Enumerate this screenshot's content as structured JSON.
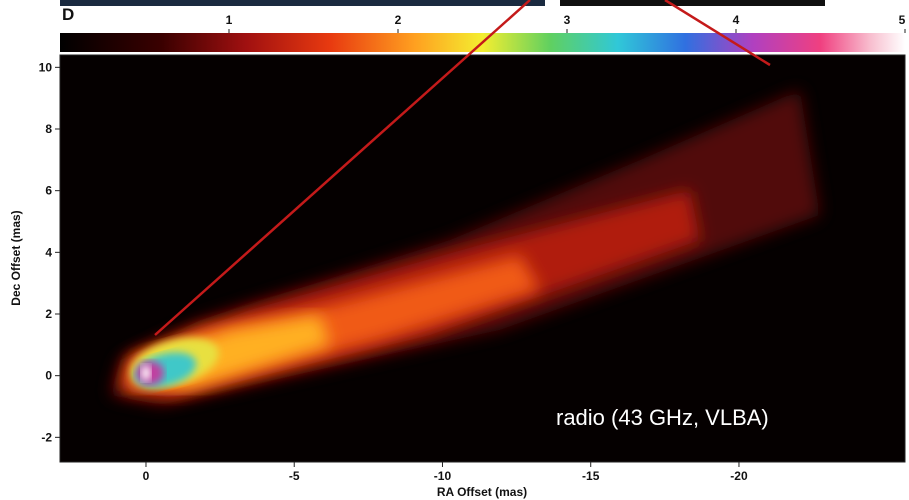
{
  "chart_data": {
    "type": "image",
    "panel_label": "D",
    "xlabel": "RA Offset (mas)",
    "ylabel": "Dec Offset (mas)",
    "annotation": "radio (43 GHz, VLBA)",
    "xlim": [
      2.9,
      -25.6
    ],
    "xticks": [
      0,
      -5,
      -10,
      -15,
      -20
    ],
    "ylim": [
      -2.8,
      10.4
    ],
    "yticks": [
      -2,
      0,
      2,
      4,
      6,
      8,
      10
    ],
    "colorbar_lim": [
      0,
      5
    ],
    "colorbar_ticks": [
      1,
      2,
      3,
      4,
      5
    ]
  }
}
